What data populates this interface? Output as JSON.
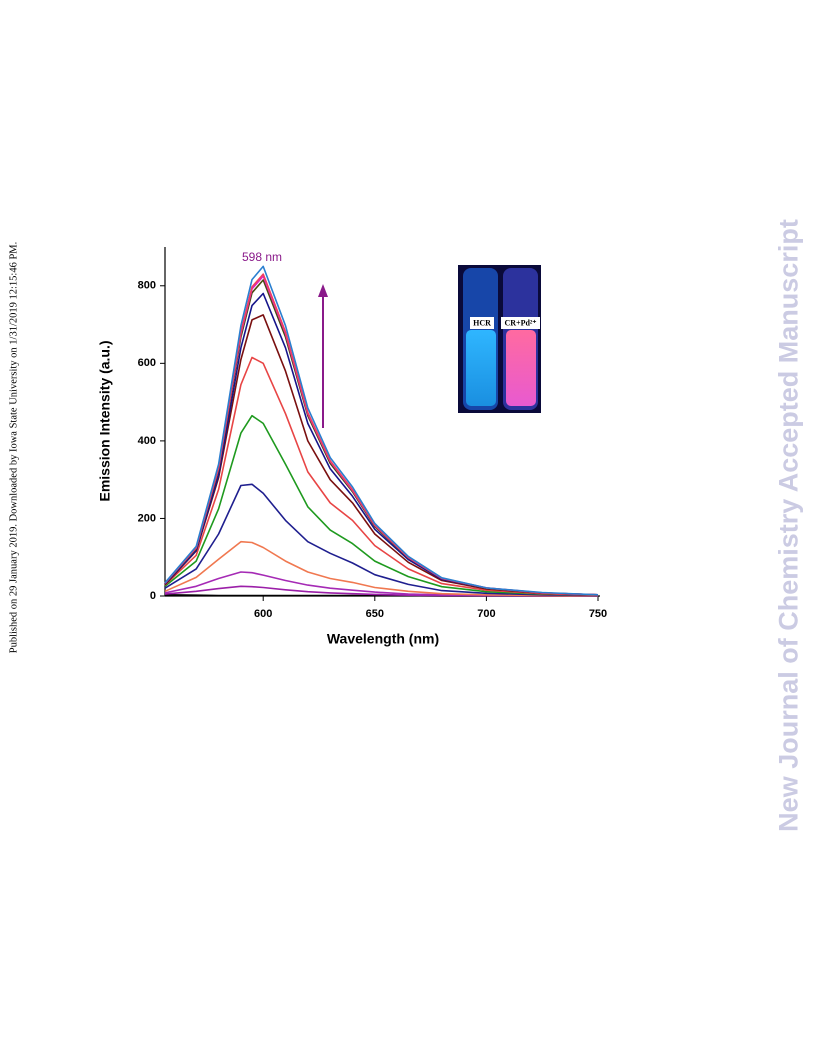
{
  "margin_note": "Published on 29 January 2019. Downloaded by Iowa State University on 1/31/2019 12:15:46 PM.",
  "watermark": "New Journal of Chemistry Accepted Manuscript",
  "chart_data": {
    "type": "line",
    "xlabel": "Wavelength (nm)",
    "ylabel": "Emission Intensity (a.u.)",
    "annotation": "598 nm",
    "inset_labels": [
      "HCR",
      "CR+Pd²⁺"
    ],
    "xlim": [
      556,
      750
    ],
    "xticks": [
      600,
      650,
      700,
      750
    ],
    "ylim": [
      0,
      900
    ],
    "yticks": [
      0,
      200,
      400,
      600,
      800
    ],
    "x": [
      556,
      570,
      580,
      590,
      595,
      600,
      610,
      620,
      630,
      640,
      650,
      665,
      680,
      700,
      725,
      750
    ],
    "series": [
      {
        "color": "#000000",
        "values": [
          3,
          2,
          1,
          1,
          1,
          1,
          1,
          1,
          1,
          1,
          1,
          1,
          0,
          0,
          0,
          0
        ]
      },
      {
        "color": "#9b1fa8",
        "values": [
          5,
          12,
          19,
          25,
          24,
          22,
          16,
          11,
          8,
          6,
          4,
          2,
          1,
          1,
          0,
          0
        ]
      },
      {
        "color": "#a52ab5",
        "values": [
          8,
          25,
          45,
          62,
          60,
          54,
          40,
          28,
          20,
          15,
          10,
          5,
          3,
          1,
          1,
          0
        ]
      },
      {
        "color": "#f07850",
        "values": [
          12,
          48,
          95,
          140,
          138,
          125,
          90,
          62,
          45,
          35,
          22,
          12,
          6,
          3,
          1,
          0
        ]
      },
      {
        "color": "#1f1f8f",
        "values": [
          20,
          70,
          160,
          285,
          288,
          265,
          195,
          140,
          110,
          85,
          55,
          30,
          14,
          7,
          3,
          1
        ]
      },
      {
        "color": "#1f9a1f",
        "values": [
          25,
          90,
          225,
          420,
          465,
          445,
          340,
          230,
          170,
          135,
          90,
          50,
          24,
          11,
          5,
          2
        ]
      },
      {
        "color": "#e84545",
        "values": [
          28,
          105,
          275,
          545,
          615,
          600,
          470,
          320,
          240,
          195,
          130,
          70,
          32,
          15,
          6,
          2
        ]
      },
      {
        "color": "#7a1010",
        "values": [
          29,
          116,
          305,
          610,
          712,
          725,
          580,
          400,
          300,
          240,
          160,
          87,
          40,
          18,
          7,
          3
        ]
      },
      {
        "color": "#15158a",
        "values": [
          31,
          117,
          312,
          640,
          749,
          780,
          640,
          445,
          328,
          257,
          172,
          94,
          43,
          20,
          8,
          3
        ]
      },
      {
        "color": "#4a4a10",
        "values": [
          33,
          122,
          326,
          668,
          782,
          815,
          668,
          465,
          342,
          269,
          179,
          98,
          45,
          20,
          8,
          3
        ]
      },
      {
        "color": "#e020c0",
        "values": [
          33,
          124,
          330,
          677,
          792,
          825,
          677,
          470,
          347,
          272,
          182,
          99,
          45,
          21,
          8,
          3
        ]
      },
      {
        "color": "#f04060",
        "values": [
          33,
          125,
          332,
          681,
          797,
          830,
          681,
          473,
          349,
          274,
          183,
          100,
          46,
          21,
          8,
          3
        ]
      },
      {
        "color": "#2a7fd0",
        "values": [
          34,
          128,
          340,
          697,
          816,
          850,
          697,
          485,
          357,
          281,
          187,
          102,
          47,
          21,
          9,
          3
        ]
      }
    ]
  }
}
